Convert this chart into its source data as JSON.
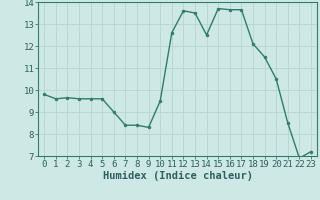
{
  "x": [
    0,
    1,
    2,
    3,
    4,
    5,
    6,
    7,
    8,
    9,
    10,
    11,
    12,
    13,
    14,
    15,
    16,
    17,
    18,
    19,
    20,
    21,
    22,
    23
  ],
  "y": [
    9.8,
    9.6,
    9.65,
    9.6,
    9.6,
    9.6,
    9.0,
    8.4,
    8.4,
    8.3,
    9.5,
    12.6,
    13.6,
    13.5,
    12.5,
    13.7,
    13.65,
    13.65,
    12.1,
    11.5,
    10.5,
    8.5,
    6.9,
    7.2
  ],
  "line_color": "#2e7d6e",
  "marker": "o",
  "marker_size": 2.0,
  "line_width": 1.0,
  "background_color": "#cde8e5",
  "grid_color": "#b8d4d0",
  "xlabel": "Humidex (Indice chaleur)",
  "xlim": [
    -0.5,
    23.5
  ],
  "ylim": [
    7,
    14
  ],
  "yticks": [
    7,
    8,
    9,
    10,
    11,
    12,
    13,
    14
  ],
  "xticks": [
    0,
    1,
    2,
    3,
    4,
    5,
    6,
    7,
    8,
    9,
    10,
    11,
    12,
    13,
    14,
    15,
    16,
    17,
    18,
    19,
    20,
    21,
    22,
    23
  ],
  "tick_fontsize": 6.5,
  "xlabel_fontsize": 7.5,
  "tick_color": "#2e6060",
  "spine_color": "#2e7d6e"
}
